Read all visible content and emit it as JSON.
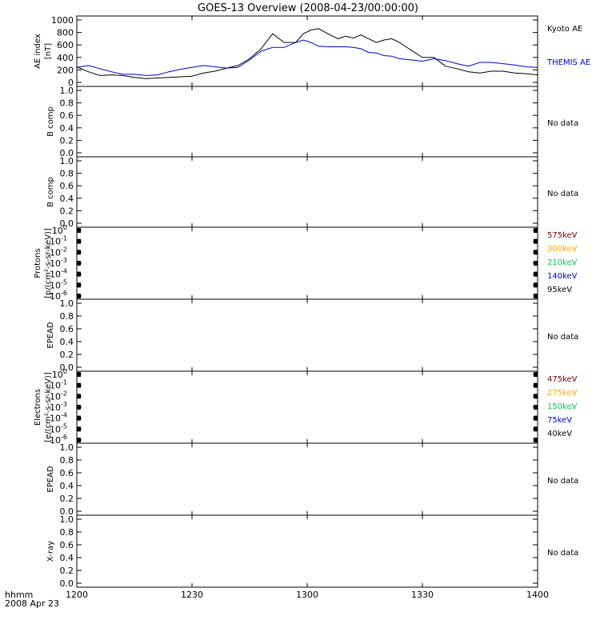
{
  "title": "GOES-13 Overview (2008-04-23/00:00:00)",
  "x_axis": {
    "ticks": [
      "1200",
      "1230",
      "1300",
      "1330",
      "1400"
    ],
    "label_line1": "hhmm",
    "label_line2": "2008 Apr 23"
  },
  "colors": {
    "kyoto": "#000000",
    "themis": "#0000cc",
    "e575": "#7a0000",
    "e300": "#ffa500",
    "e210": "#00cc44",
    "e140": "#0000cc",
    "e95": "#000000",
    "e475": "#7a0000",
    "e275": "#ffa500",
    "e150": "#00cc44",
    "e75": "#0000cc",
    "e40": "#000000"
  },
  "chart_data": [
    {
      "type": "line",
      "panel": "ae",
      "ylabel": [
        "AE index",
        "[nT]"
      ],
      "ylim": [
        0,
        1000
      ],
      "yticks": [
        "0",
        "200",
        "400",
        "600",
        "800",
        "1000"
      ],
      "xlim": [
        "12:00",
        "14:00"
      ],
      "series": [
        {
          "name": "Kyoto AE",
          "x": [
            "12:00",
            "12:03",
            "12:06",
            "12:09",
            "12:12",
            "12:15",
            "12:18",
            "12:21",
            "12:24",
            "12:27",
            "12:30",
            "12:33",
            "12:36",
            "12:39",
            "12:42",
            "12:45",
            "12:48",
            "12:51",
            "12:54",
            "12:57",
            "12:59",
            "13:01",
            "13:03",
            "13:06",
            "13:08",
            "13:10",
            "13:12",
            "13:14",
            "13:16",
            "13:18",
            "13:20",
            "13:22",
            "13:24",
            "13:27",
            "13:30",
            "13:33",
            "13:36",
            "13:39",
            "13:42",
            "13:45",
            "13:48",
            "13:51",
            "13:54",
            "13:57",
            "14:00"
          ],
          "values": [
            250,
            170,
            110,
            120,
            110,
            80,
            60,
            70,
            80,
            90,
            100,
            150,
            180,
            230,
            270,
            380,
            540,
            780,
            640,
            640,
            780,
            840,
            860,
            760,
            700,
            740,
            710,
            760,
            700,
            640,
            680,
            700,
            640,
            520,
            400,
            400,
            260,
            220,
            170,
            150,
            180,
            180,
            150,
            140,
            120
          ]
        },
        {
          "name": "THEMIS AE",
          "x": [
            "12:00",
            "12:03",
            "12:06",
            "12:09",
            "12:12",
            "12:15",
            "12:18",
            "12:21",
            "12:24",
            "12:27",
            "12:30",
            "12:33",
            "12:36",
            "12:39",
            "12:42",
            "12:45",
            "12:48",
            "12:51",
            "12:54",
            "12:57",
            "12:59",
            "13:01",
            "13:03",
            "13:06",
            "13:08",
            "13:10",
            "13:12",
            "13:14",
            "13:16",
            "13:18",
            "13:20",
            "13:22",
            "13:24",
            "13:27",
            "13:30",
            "13:33",
            "13:36",
            "13:39",
            "13:42",
            "13:45",
            "13:48",
            "13:51",
            "13:54",
            "13:57",
            "14:00"
          ],
          "values": [
            240,
            270,
            220,
            170,
            130,
            130,
            110,
            120,
            170,
            210,
            240,
            270,
            250,
            230,
            240,
            360,
            500,
            560,
            560,
            640,
            680,
            640,
            580,
            570,
            570,
            570,
            560,
            540,
            480,
            470,
            430,
            420,
            380,
            360,
            340,
            380,
            350,
            300,
            260,
            320,
            320,
            300,
            280,
            250,
            240
          ]
        }
      ]
    },
    {
      "type": "line",
      "panel": "b1",
      "ylabel": [
        "B comp"
      ],
      "ylim": [
        0,
        1
      ],
      "yticks": [
        "0.0",
        "0.2",
        "0.4",
        "0.6",
        "0.8",
        "1.0"
      ],
      "note": "No data"
    },
    {
      "type": "line",
      "panel": "b2",
      "ylabel": [
        "B comp"
      ],
      "ylim": [
        0,
        1
      ],
      "yticks": [
        "0.0",
        "0.2",
        "0.4",
        "0.6",
        "0.8",
        "1.0"
      ],
      "note": "No data"
    },
    {
      "type": "line",
      "panel": "protons",
      "ylabel": [
        "Protons",
        "[p/(cm²-s-sr-keV)]"
      ],
      "ylim": [
        1e-06,
        1
      ],
      "log_scale": true,
      "yticks": [
        {
          "base": "10",
          "exp": "0"
        },
        {
          "base": "10",
          "exp": "-1"
        },
        {
          "base": "10",
          "exp": "-2"
        },
        {
          "base": "10",
          "exp": "-3"
        },
        {
          "base": "10",
          "exp": "-4"
        },
        {
          "base": "10",
          "exp": "-5"
        },
        {
          "base": "10",
          "exp": "-6"
        }
      ],
      "legend": [
        {
          "name": "575keV",
          "color_key": "e575"
        },
        {
          "name": "300keV",
          "color_key": "e300"
        },
        {
          "name": "210keV",
          "color_key": "e210"
        },
        {
          "name": "140keV",
          "color_key": "e140"
        },
        {
          "name": "95keV",
          "color_key": "e95"
        }
      ]
    },
    {
      "type": "line",
      "panel": "epead1",
      "ylabel": [
        "EPEAD"
      ],
      "ylim": [
        0,
        1
      ],
      "yticks": [
        "0.0",
        "0.2",
        "0.4",
        "0.6",
        "0.8",
        "1.0"
      ],
      "note": "No data"
    },
    {
      "type": "line",
      "panel": "electrons",
      "ylabel": [
        "Electrons",
        "[e/(cm²-s-sr-keV)]"
      ],
      "ylim": [
        1e-06,
        1
      ],
      "log_scale": true,
      "yticks": [
        {
          "base": "10",
          "exp": "0"
        },
        {
          "base": "10",
          "exp": "-1"
        },
        {
          "base": "10",
          "exp": "-2"
        },
        {
          "base": "10",
          "exp": "-3"
        },
        {
          "base": "10",
          "exp": "-4"
        },
        {
          "base": "10",
          "exp": "-5"
        },
        {
          "base": "10",
          "exp": "-6"
        }
      ],
      "legend": [
        {
          "name": "475keV",
          "color_key": "e475"
        },
        {
          "name": "275keV",
          "color_key": "e275"
        },
        {
          "name": "150keV",
          "color_key": "e150"
        },
        {
          "name": "75keV",
          "color_key": "e75"
        },
        {
          "name": "40keV",
          "color_key": "e40"
        }
      ]
    },
    {
      "type": "line",
      "panel": "epead2",
      "ylabel": [
        "EPEAD"
      ],
      "ylim": [
        0,
        1
      ],
      "yticks": [
        "0.0",
        "0.2",
        "0.4",
        "0.6",
        "0.8",
        "1.0"
      ],
      "note": "No data"
    },
    {
      "type": "line",
      "panel": "xray",
      "ylabel": [
        "X-ray"
      ],
      "ylim": [
        0,
        1
      ],
      "yticks": [
        "0.0",
        "0.2",
        "0.4",
        "0.6",
        "0.8",
        "1.0"
      ],
      "note": "No data"
    }
  ]
}
